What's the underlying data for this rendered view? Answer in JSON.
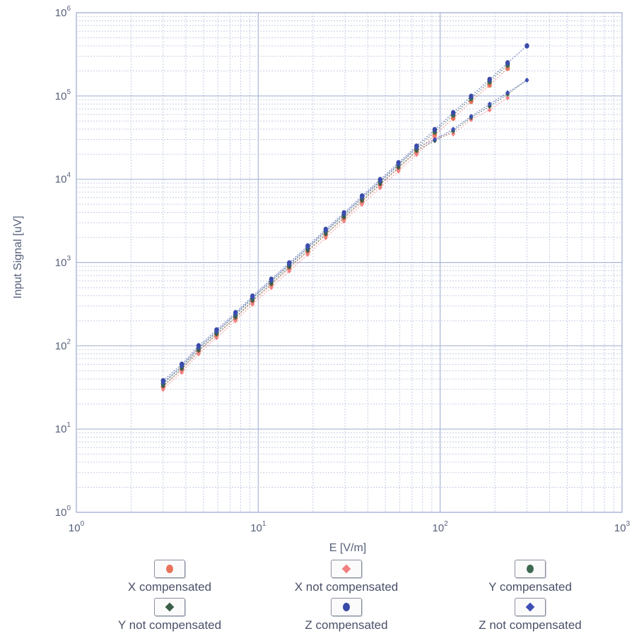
{
  "chart_data": {
    "type": "scatter",
    "xlabel": "E [V/m]",
    "ylabel": "Input Signal [uV]",
    "x_scale": "log",
    "y_scale": "log",
    "xlim": [
      1,
      1000
    ],
    "ylim": [
      1,
      1000000
    ],
    "x_ticks": [
      {
        "base": "10",
        "exp": "0"
      },
      {
        "base": "10",
        "exp": "1"
      },
      {
        "base": "10",
        "exp": "2"
      },
      {
        "base": "10",
        "exp": "3"
      }
    ],
    "y_ticks": [
      {
        "base": "10",
        "exp": "0"
      },
      {
        "base": "10",
        "exp": "1"
      },
      {
        "base": "10",
        "exp": "2"
      },
      {
        "base": "10",
        "exp": "3"
      },
      {
        "base": "10",
        "exp": "4"
      },
      {
        "base": "10",
        "exp": "5"
      },
      {
        "base": "10",
        "exp": "6"
      }
    ],
    "grid": true,
    "legend_position": "bottom",
    "series": [
      {
        "name": "X compensated",
        "marker": "circle",
        "color": "#e8735a",
        "x": [
          3,
          3.8,
          4.7,
          5.9,
          7.5,
          9.3,
          11.8,
          14.8,
          18.7,
          23.5,
          29.6,
          37.2,
          46.8,
          59,
          74.2,
          93.4,
          118,
          148,
          187,
          235
        ],
        "y": [
          32,
          52,
          86,
          135,
          215,
          340,
          540,
          860,
          1350,
          2150,
          3400,
          5400,
          8600,
          13500,
          21500,
          34000,
          54000,
          86000,
          135000,
          215000
        ]
      },
      {
        "name": "X not compensated",
        "marker": "diamond",
        "color": "#f08080",
        "x": [
          3,
          3.8,
          4.7,
          5.9,
          7.5,
          9.3,
          11.8,
          14.8,
          18.7,
          23.5,
          29.6,
          37.2,
          46.8,
          59,
          74.2,
          93.4,
          118,
          148,
          187,
          235
        ],
        "y": [
          30,
          48,
          80,
          125,
          200,
          315,
          500,
          790,
          1250,
          1980,
          3150,
          5000,
          7900,
          12500,
          19800,
          31500,
          35000,
          52000,
          68000,
          95000
        ]
      },
      {
        "name": "Y compensated",
        "marker": "circle",
        "color": "#3f6a52",
        "x": [
          3,
          3.8,
          4.7,
          5.9,
          7.5,
          9.3,
          11.8,
          14.8,
          18.7,
          23.5,
          29.6,
          37.2,
          46.8,
          59,
          74.2,
          93.4,
          118,
          148,
          187,
          235
        ],
        "y": [
          35,
          56,
          93,
          145,
          235,
          370,
          590,
          930,
          1480,
          2350,
          3700,
          5900,
          9300,
          14800,
          23500,
          37000,
          59000,
          93000,
          148000,
          235000
        ]
      },
      {
        "name": "Y not compensated",
        "marker": "diamond",
        "color": "#3b5e48",
        "x": [
          3,
          3.8,
          4.7,
          5.9,
          7.5,
          9.3,
          11.8,
          14.8,
          18.7,
          23.5,
          29.6,
          37.2,
          46.8,
          59,
          74.2,
          93.4,
          118,
          148,
          187,
          235,
          300
        ],
        "y": [
          33,
          53,
          88,
          138,
          220,
          350,
          555,
          880,
          1390,
          2200,
          3500,
          5550,
          8800,
          13900,
          22000,
          29000,
          38000,
          55000,
          75000,
          105000,
          155000
        ]
      },
      {
        "name": "Z compensated",
        "marker": "circle",
        "color": "#3a4aa8",
        "x": [
          3,
          3.8,
          4.7,
          5.9,
          7.5,
          9.3,
          11.8,
          14.8,
          18.7,
          23.5,
          29.6,
          37.2,
          46.8,
          59,
          74.2,
          93.4,
          118,
          148,
          187,
          235,
          300
        ],
        "y": [
          38,
          60,
          100,
          155,
          250,
          395,
          630,
          990,
          1580,
          2500,
          3950,
          6300,
          9900,
          15800,
          25000,
          39500,
          63000,
          99000,
          158000,
          250000,
          400000
        ]
      },
      {
        "name": "Z not compensated",
        "marker": "diamond",
        "color": "#3d4fb5",
        "x": [
          3,
          3.8,
          4.7,
          5.9,
          7.5,
          9.3,
          11.8,
          14.8,
          18.7,
          23.5,
          29.6,
          37.2,
          46.8,
          59,
          74.2,
          93.4,
          118,
          148,
          187,
          235,
          300
        ],
        "y": [
          36,
          57,
          95,
          148,
          240,
          380,
          605,
          950,
          1510,
          2400,
          3800,
          6050,
          9500,
          15100,
          24000,
          30000,
          40000,
          57000,
          80000,
          110000,
          155000
        ]
      }
    ]
  },
  "legend": {
    "items": [
      {
        "label": "X compensated",
        "marker": "circle",
        "color": "#e8735a"
      },
      {
        "label": "X not compensated",
        "marker": "diamond",
        "color": "#f08080"
      },
      {
        "label": "Y compensated",
        "marker": "circle",
        "color": "#3f6a52"
      },
      {
        "label": "Y not compensated",
        "marker": "diamond",
        "color": "#3b5e48"
      },
      {
        "label": "Z compensated",
        "marker": "circle",
        "color": "#3a4aa8"
      },
      {
        "label": "Z not compensated",
        "marker": "diamond",
        "color": "#3d4fb5"
      }
    ]
  },
  "colors": {
    "grid_major": "#a9b6d6",
    "grid_minor": "#c4cde3",
    "frame": "#9aa7cc",
    "text": "#55607a"
  }
}
